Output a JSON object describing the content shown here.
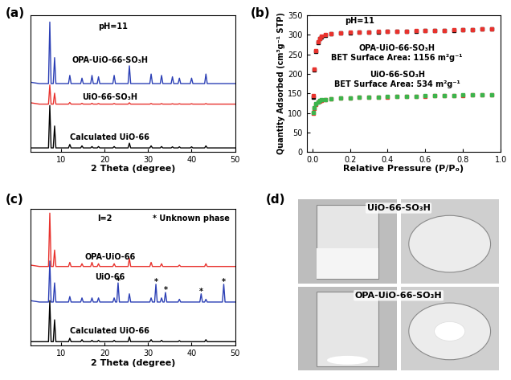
{
  "chart_data": [
    {
      "type": "line",
      "panel_label": "(a)",
      "xlabel": "2 Theta (degree)",
      "tick_labels": "x",
      "xlim": [
        3,
        50
      ],
      "xticks": [
        10,
        20,
        30,
        40,
        50
      ],
      "ylim": [
        0,
        10
      ],
      "annotations": [
        {
          "text": "pH=11",
          "x": 22,
          "y": 9.2
        }
      ],
      "x": [
        3,
        5,
        6.5,
        7.1,
        7.4,
        7.7,
        8.2,
        8.5,
        8.8,
        10,
        11.7,
        12.0,
        12.3,
        14.5,
        14.8,
        15.1,
        16.8,
        17.1,
        17.4,
        18.3,
        18.6,
        18.9,
        21.9,
        22.2,
        22.5,
        25.4,
        25.7,
        26.0,
        28,
        30.4,
        30.7,
        31.0,
        32.8,
        33.1,
        33.4,
        35.3,
        35.6,
        35.9,
        36.9,
        37.2,
        37.5,
        39.7,
        40.0,
        40.3,
        43.0,
        43.3,
        43.6,
        46,
        48,
        50
      ],
      "series": [
        {
          "name": "Calculated UiO-66",
          "color": "#000000",
          "values": [
            0.3,
            0.3,
            0.3,
            0.3,
            3.4,
            0.3,
            0.3,
            1.9,
            0.3,
            0.3,
            0.3,
            0.55,
            0.3,
            0.3,
            0.45,
            0.3,
            0.3,
            0.4,
            0.3,
            0.3,
            0.4,
            0.3,
            0.3,
            0.4,
            0.3,
            0.3,
            0.65,
            0.3,
            0.3,
            0.3,
            0.45,
            0.3,
            0.3,
            0.4,
            0.3,
            0.3,
            0.38,
            0.3,
            0.3,
            0.38,
            0.3,
            0.3,
            0.38,
            0.3,
            0.3,
            0.45,
            0.3,
            0.3,
            0.3,
            0.3
          ]
        },
        {
          "name": "UiO-66-SO₃H",
          "color": "#e8322d",
          "values": [
            3.6,
            3.5,
            3.5,
            3.5,
            4.9,
            3.5,
            3.5,
            4.3,
            3.5,
            3.5,
            3.5,
            3.62,
            3.5,
            3.5,
            3.56,
            3.5,
            3.5,
            3.56,
            3.5,
            3.5,
            3.55,
            3.5,
            3.5,
            3.55,
            3.5,
            3.5,
            3.6,
            3.5,
            3.5,
            3.5,
            3.55,
            3.5,
            3.5,
            3.54,
            3.5,
            3.5,
            3.53,
            3.5,
            3.5,
            3.53,
            3.5,
            3.5,
            3.53,
            3.5,
            3.5,
            3.54,
            3.5,
            3.5,
            3.5,
            3.5
          ]
        },
        {
          "name": "OPA-UiO-66-SO₃H",
          "color": "#2b3fb5",
          "values": [
            5.1,
            5.0,
            5.0,
            5.0,
            9.5,
            5.0,
            5.0,
            6.9,
            5.0,
            5.0,
            5.0,
            5.6,
            5.0,
            5.0,
            5.4,
            5.0,
            5.0,
            5.6,
            5.0,
            5.0,
            5.5,
            5.0,
            5.0,
            5.6,
            5.0,
            5.0,
            6.3,
            5.0,
            5.0,
            5.0,
            5.7,
            5.0,
            5.0,
            5.6,
            5.0,
            5.0,
            5.5,
            5.0,
            5.0,
            5.4,
            5.0,
            5.0,
            5.4,
            5.0,
            5.0,
            5.7,
            5.0,
            5.0,
            5.0,
            5.0
          ]
        }
      ]
    },
    {
      "type": "scatter",
      "panel_label": "(b)",
      "xlabel": "Relative Pressure (P/Pₒ)",
      "ylabel": "Quantity Adsorbed (cm³g⁻¹ STP)",
      "xlim": [
        -0.03,
        1.0
      ],
      "xticks": [
        {
          "value": 0,
          "label": "0.0"
        },
        {
          "value": 0.2,
          "label": "0.2"
        },
        {
          "value": 0.4,
          "label": "0.4"
        },
        {
          "value": 0.6,
          "label": "0.6"
        },
        {
          "value": 0.8,
          "label": "0.8"
        },
        {
          "value": 1,
          "label": "1.0"
        }
      ],
      "ylim": [
        0,
        350
      ],
      "yticks": [
        0,
        50,
        100,
        150,
        200,
        250,
        300,
        350
      ],
      "annotations": [
        {
          "text": "pH=11",
          "x": 0.25,
          "y": 335
        },
        {
          "text": "OPA-UiO-66-SO₃H",
          "x": 0.45,
          "y": 265
        },
        {
          "text": "BET Surface Area: 1156 m²g⁻¹",
          "x": 0.45,
          "y": 240
        },
        {
          "text": "UiO-66-SO₃H",
          "x": 0.45,
          "y": 197
        },
        {
          "text": "BET Surface Area: 534 m²g⁻¹",
          "x": 0.45,
          "y": 173
        }
      ],
      "x": [
        0.005,
        0.01,
        0.02,
        0.03,
        0.04,
        0.05,
        0.07,
        0.1,
        0.15,
        0.2,
        0.25,
        0.3,
        0.35,
        0.4,
        0.45,
        0.5,
        0.55,
        0.6,
        0.65,
        0.7,
        0.75,
        0.8,
        0.85,
        0.9,
        0.95
      ],
      "series": [
        {
          "color": "#000000",
          "marker": "square",
          "values": [
            140,
            210,
            258,
            280,
            290,
            295,
            299,
            302,
            304,
            305,
            306,
            307,
            307,
            308,
            308,
            309,
            309,
            310,
            310,
            311,
            311,
            312,
            313,
            314,
            315
          ]
        },
        {
          "color": "#e8322d",
          "marker": "square",
          "values": [
            145,
            212,
            260,
            281,
            291,
            296,
            300,
            303,
            305,
            306,
            307,
            307,
            308,
            308,
            309,
            309,
            310,
            310,
            311,
            311,
            312,
            312,
            313,
            314,
            315
          ]
        },
        {
          "color": "#e8322d",
          "marker": "square",
          "values": [
            100,
            112,
            122,
            127,
            130,
            132,
            134,
            136,
            138,
            139,
            140,
            140,
            141,
            141,
            142,
            142,
            143,
            143,
            144,
            144,
            145,
            145,
            146,
            146,
            147
          ]
        },
        {
          "color": "#3cb44b",
          "marker": "square",
          "values": [
            102,
            113,
            123,
            128,
            131,
            133,
            135,
            137,
            138,
            139,
            140,
            141,
            141,
            142,
            142,
            143,
            143,
            144,
            144,
            145,
            145,
            146,
            146,
            147,
            147
          ]
        }
      ]
    },
    {
      "type": "line",
      "panel_label": "(c)",
      "xlabel": "2 Theta (degree)",
      "tick_labels": "x",
      "xlim": [
        3,
        50
      ],
      "xticks": [
        10,
        20,
        30,
        40,
        50
      ],
      "ylim": [
        0,
        10
      ],
      "annotations": [
        {
          "text": "I=2",
          "x": 20,
          "y": 9.3
        },
        {
          "text": "* Unknown phase",
          "x": 40,
          "y": 9.3
        },
        {
          "text": "*",
          "x": 23.1,
          "y": 4.75
        },
        {
          "text": "*",
          "x": 31.8,
          "y": 4.65
        },
        {
          "text": "*",
          "x": 34.0,
          "y": 4.05
        },
        {
          "text": "*",
          "x": 42.2,
          "y": 3.95
        },
        {
          "text": "*",
          "x": 47.4,
          "y": 4.65
        }
      ],
      "x": [
        3,
        5,
        6.5,
        7.1,
        7.4,
        7.7,
        8.2,
        8.5,
        8.8,
        10,
        11.7,
        12.0,
        12.3,
        14.5,
        14.8,
        15.1,
        16.8,
        17.1,
        17.4,
        18.3,
        18.6,
        18.9,
        21.9,
        22.2,
        22.5,
        22.8,
        23.1,
        23.4,
        25.4,
        25.7,
        26.0,
        28,
        30.4,
        30.7,
        31.0,
        31.5,
        31.8,
        32.1,
        32.8,
        33.1,
        33.4,
        33.7,
        34.0,
        34.3,
        36.9,
        37.2,
        37.5,
        41.9,
        42.2,
        42.5,
        43.0,
        43.3,
        43.6,
        47.1,
        47.4,
        47.7,
        50
      ],
      "series": [
        {
          "name": "Calculated UiO-66",
          "color": "#000000",
          "values": [
            0.3,
            0.3,
            0.3,
            0.3,
            3.3,
            0.3,
            0.3,
            1.9,
            0.3,
            0.3,
            0.3,
            0.55,
            0.3,
            0.3,
            0.45,
            0.3,
            0.3,
            0.4,
            0.3,
            0.3,
            0.4,
            0.3,
            0.3,
            0.4,
            0.3,
            0.3,
            0.3,
            0.3,
            0.3,
            0.65,
            0.3,
            0.3,
            0.3,
            0.45,
            0.3,
            0.3,
            0.3,
            0.3,
            0.3,
            0.4,
            0.3,
            0.3,
            0.3,
            0.3,
            0.3,
            0.38,
            0.3,
            0.3,
            0.3,
            0.3,
            0.3,
            0.45,
            0.3,
            0.3,
            0.3,
            0.3,
            0.3
          ]
        },
        {
          "name": "UiO-66",
          "color": "#2b3fb5",
          "values": [
            3.3,
            3.2,
            3.2,
            3.2,
            6.2,
            3.2,
            3.2,
            4.6,
            3.2,
            3.2,
            3.2,
            3.6,
            3.2,
            3.2,
            3.5,
            3.2,
            3.2,
            3.5,
            3.2,
            3.2,
            3.5,
            3.2,
            3.2,
            3.5,
            3.2,
            3.2,
            4.6,
            3.2,
            3.2,
            3.8,
            3.2,
            3.2,
            3.2,
            3.5,
            3.2,
            3.2,
            4.5,
            3.2,
            3.2,
            3.5,
            3.2,
            3.2,
            3.9,
            3.2,
            3.2,
            3.4,
            3.2,
            3.2,
            3.8,
            3.2,
            3.2,
            3.4,
            3.2,
            3.2,
            4.5,
            3.2,
            3.2
          ]
        },
        {
          "name": "OPA-UiO-66",
          "color": "#e8322d",
          "values": [
            5.9,
            5.8,
            5.8,
            5.8,
            9.7,
            5.8,
            5.8,
            7.0,
            5.8,
            5.8,
            5.8,
            6.1,
            5.8,
            5.8,
            6.0,
            5.8,
            5.8,
            6.1,
            5.8,
            5.8,
            6.0,
            5.8,
            5.8,
            6.0,
            5.8,
            5.8,
            5.8,
            5.8,
            5.8,
            6.4,
            5.8,
            5.8,
            5.8,
            6.1,
            5.8,
            5.8,
            5.8,
            5.8,
            5.8,
            6.0,
            5.8,
            5.8,
            5.8,
            5.8,
            5.8,
            5.9,
            5.8,
            5.8,
            5.8,
            5.8,
            5.8,
            6.0,
            5.8,
            5.8,
            5.8,
            5.8,
            5.8
          ]
        }
      ]
    }
  ],
  "photos": {
    "panel_label": "(d)",
    "labels": [
      "UiO-66-SO₃H",
      "OPA-UiO-66-SO₃H"
    ]
  }
}
